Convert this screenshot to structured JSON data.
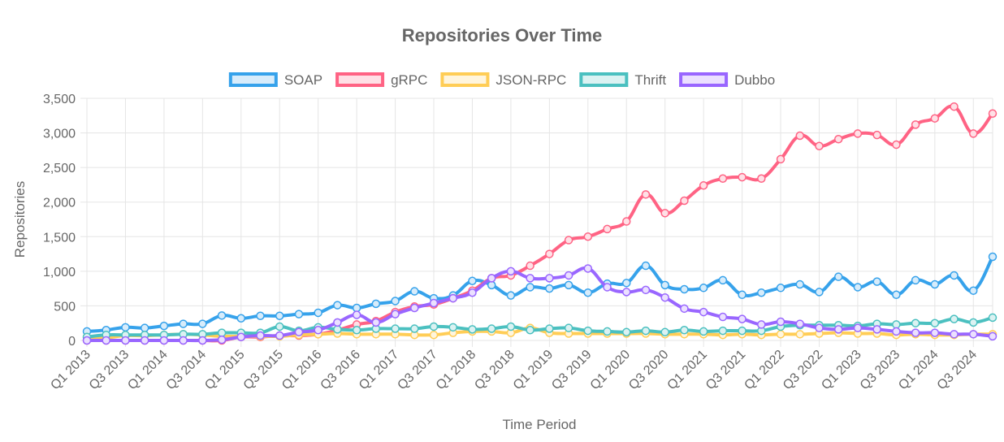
{
  "chart_data": {
    "type": "line",
    "title": "Repositories Over Time",
    "xlabel": "Time Period",
    "ylabel": "Repositories",
    "ylim": [
      0,
      3500
    ],
    "yticks": [
      "0",
      "500",
      "1,000",
      "1,500",
      "2,000",
      "2,500",
      "3,000",
      "3,500"
    ],
    "grid": true,
    "legend_position": "top",
    "categories": [
      "Q1 2013",
      "Q2 2013",
      "Q3 2013",
      "Q4 2013",
      "Q1 2014",
      "Q2 2014",
      "Q3 2014",
      "Q4 2014",
      "Q1 2015",
      "Q2 2015",
      "Q3 2015",
      "Q4 2015",
      "Q1 2016",
      "Q2 2016",
      "Q3 2016",
      "Q4 2016",
      "Q1 2017",
      "Q2 2017",
      "Q3 2017",
      "Q4 2017",
      "Q1 2018",
      "Q2 2018",
      "Q3 2018",
      "Q4 2018",
      "Q1 2019",
      "Q2 2019",
      "Q3 2019",
      "Q4 2019",
      "Q1 2020",
      "Q2 2020",
      "Q3 2020",
      "Q4 2020",
      "Q1 2021",
      "Q2 2021",
      "Q3 2021",
      "Q4 2021",
      "Q1 2022",
      "Q2 2022",
      "Q3 2022",
      "Q4 2022",
      "Q1 2023",
      "Q2 2023",
      "Q3 2023",
      "Q4 2023",
      "Q1 2024",
      "Q2 2024",
      "Q3 2024",
      "Q4 2024"
    ],
    "series": [
      {
        "name": "SOAP",
        "color": "#36a2eb",
        "fill": "#d7ecfb",
        "values": [
          130,
          150,
          190,
          180,
          210,
          240,
          240,
          360,
          320,
          355,
          355,
          380,
          400,
          510,
          470,
          530,
          570,
          710,
          610,
          650,
          860,
          800,
          650,
          770,
          750,
          800,
          690,
          820,
          830,
          1080,
          800,
          740,
          760,
          870,
          660,
          690,
          760,
          810,
          700,
          920,
          770,
          850,
          660,
          870,
          810,
          940,
          720,
          1210
        ]
      },
      {
        "name": "gRPC",
        "color": "#ff6384",
        "fill": "#ffe0e6",
        "values": [
          0,
          0,
          0,
          0,
          0,
          0,
          0,
          0,
          50,
          50,
          70,
          70,
          90,
          150,
          230,
          280,
          410,
          490,
          520,
          610,
          720,
          900,
          940,
          1080,
          1250,
          1450,
          1500,
          1610,
          1720,
          2110,
          1840,
          2020,
          2240,
          2340,
          2360,
          2340,
          2620,
          2960,
          2810,
          2910,
          2990,
          2970,
          2830,
          3120,
          3210,
          3380,
          2990,
          3280
        ]
      },
      {
        "name": "JSON-RPC",
        "color": "#ffcd56",
        "fill": "#fff5dd",
        "values": [
          50,
          40,
          70,
          70,
          80,
          90,
          80,
          60,
          60,
          60,
          60,
          80,
          90,
          100,
          90,
          90,
          90,
          80,
          80,
          110,
          130,
          130,
          110,
          180,
          110,
          100,
          100,
          100,
          100,
          100,
          90,
          90,
          90,
          80,
          90,
          80,
          90,
          90,
          100,
          110,
          100,
          100,
          80,
          90,
          80,
          80,
          90,
          90
        ]
      },
      {
        "name": "Thrift",
        "color": "#4bc0c0",
        "fill": "#dbf2f2",
        "values": [
          50,
          80,
          80,
          80,
          80,
          90,
          90,
          110,
          110,
          110,
          200,
          140,
          190,
          160,
          150,
          170,
          170,
          170,
          200,
          190,
          160,
          170,
          200,
          150,
          170,
          180,
          140,
          130,
          120,
          140,
          120,
          150,
          130,
          140,
          140,
          140,
          200,
          220,
          220,
          220,
          210,
          240,
          230,
          250,
          250,
          310,
          260,
          330
        ]
      },
      {
        "name": "Dubbo",
        "color": "#9966ff",
        "fill": "#ebe0ff",
        "values": [
          0,
          0,
          0,
          0,
          0,
          0,
          0,
          10,
          50,
          70,
          70,
          120,
          150,
          260,
          370,
          260,
          380,
          470,
          540,
          610,
          690,
          900,
          1000,
          900,
          900,
          940,
          1040,
          770,
          700,
          730,
          620,
          460,
          410,
          340,
          310,
          230,
          270,
          240,
          180,
          160,
          180,
          160,
          130,
          110,
          110,
          90,
          90,
          60
        ]
      }
    ]
  }
}
